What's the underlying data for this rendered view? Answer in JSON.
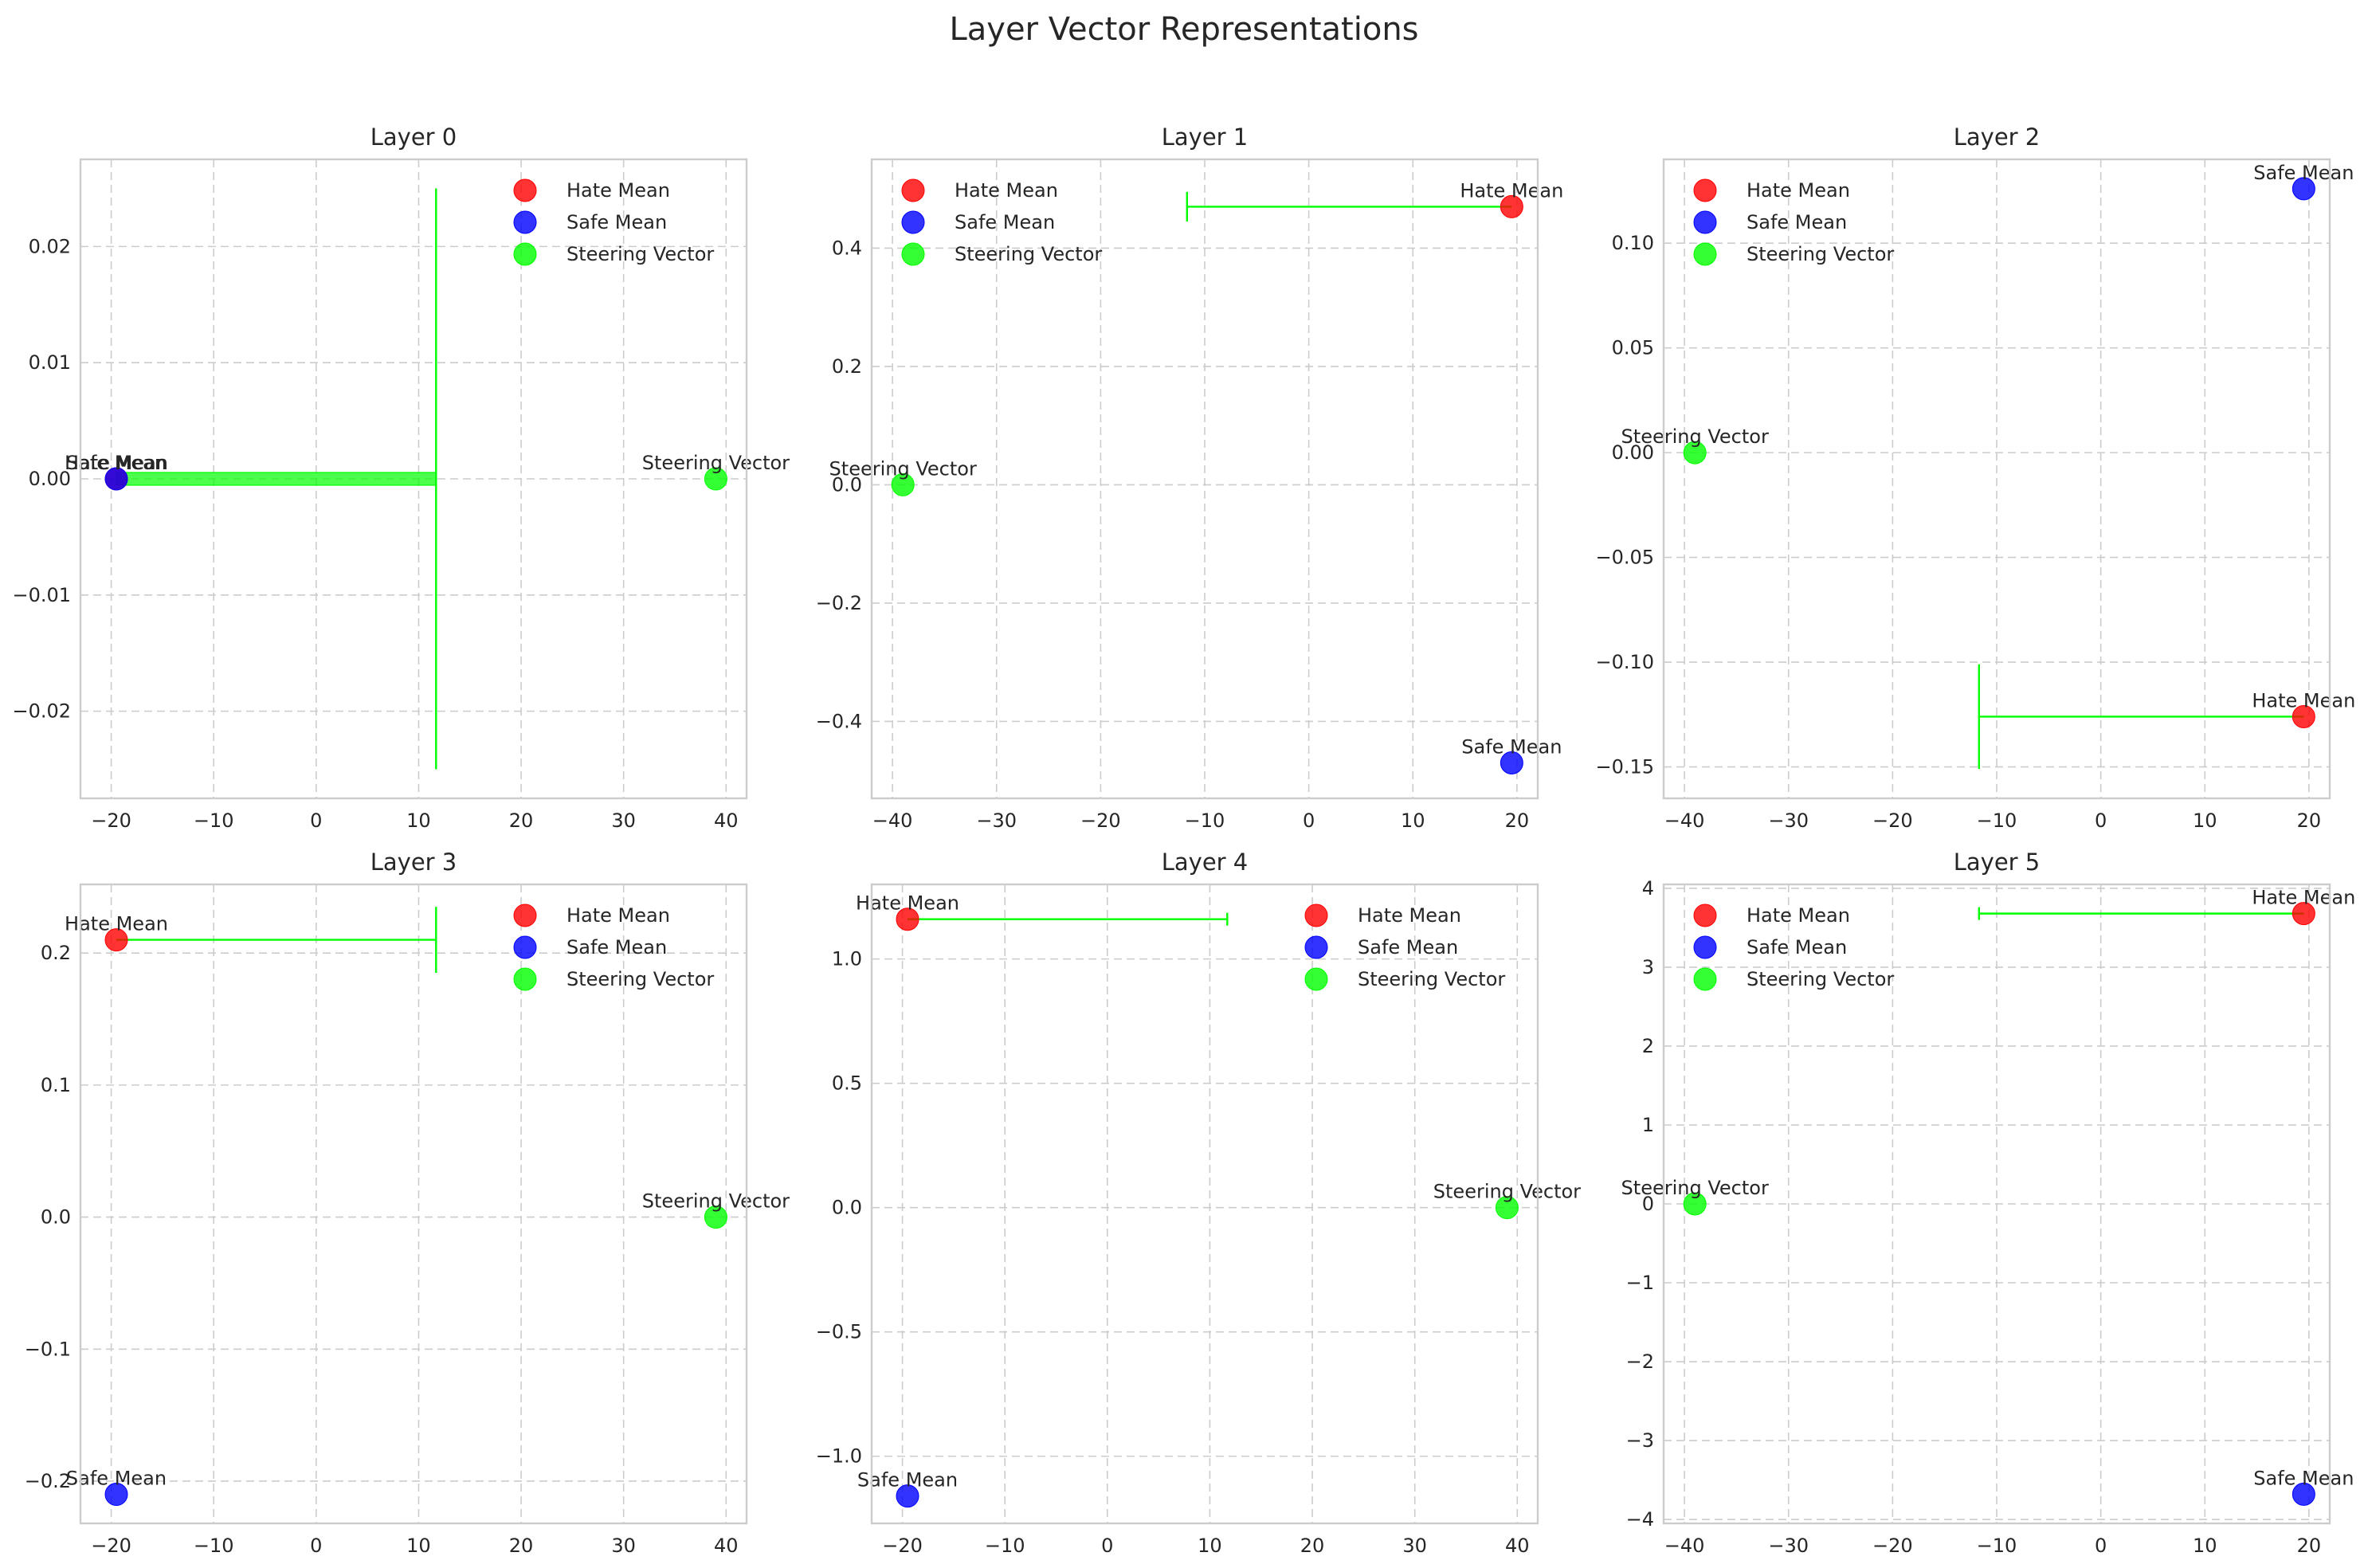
{
  "figure": {
    "title": "Layer Vector Representations"
  },
  "colors": {
    "hate": "#ff0000",
    "safe": "#0000ff",
    "steering": "#00ff00",
    "grid": "#cccccc",
    "spine": "#cccccc"
  },
  "legend_labels": [
    "Hate Mean",
    "Safe Mean",
    "Steering Vector"
  ],
  "chart_data": [
    {
      "type": "scatter",
      "title": "Layer 0",
      "legend": "top-right",
      "grid": true,
      "xlim": [
        -23,
        42
      ],
      "ylim": [
        -0.0275,
        0.0275
      ],
      "xticks": [
        -20,
        -10,
        0,
        10,
        20,
        30,
        40
      ],
      "xtick_labels": [
        "−20",
        "−10",
        "0",
        "10",
        "20",
        "30",
        "40"
      ],
      "yticks": [
        -0.02,
        -0.01,
        0.0,
        0.01,
        0.02
      ],
      "ytick_labels": [
        "−0.02",
        "−0.01",
        "0.00",
        "0.01",
        "0.02"
      ],
      "series": [
        {
          "name": "Hate Mean",
          "x": -19.5,
          "y": 0.0,
          "annotation": "Hate Mean"
        },
        {
          "name": "Safe Mean",
          "x": -19.5,
          "y": 0.0,
          "annotation": "Safe Mean"
        },
        {
          "name": "Steering Vector",
          "x": 39.0,
          "y": 0.0,
          "annotation": "Steering Vector"
        }
      ],
      "arrow": {
        "x": -19.5,
        "y": 0.0,
        "dx": 31.2,
        "dy": 0.0,
        "head_halfheight": 0.025,
        "thick": true
      }
    },
    {
      "type": "scatter",
      "title": "Layer 1",
      "legend": "top-left",
      "grid": true,
      "xlim": [
        -42,
        22
      ],
      "ylim": [
        -0.53,
        0.55
      ],
      "xticks": [
        -40,
        -30,
        -20,
        -10,
        0,
        10,
        20
      ],
      "xtick_labels": [
        "−40",
        "−30",
        "−20",
        "−10",
        "0",
        "10",
        "20"
      ],
      "yticks": [
        -0.4,
        -0.2,
        0.0,
        0.2,
        0.4
      ],
      "ytick_labels": [
        "−0.4",
        "−0.2",
        "0.0",
        "0.2",
        "0.4"
      ],
      "series": [
        {
          "name": "Hate Mean",
          "x": 19.5,
          "y": 0.47,
          "annotation": "Hate Mean"
        },
        {
          "name": "Safe Mean",
          "x": 19.5,
          "y": -0.47,
          "annotation": "Safe Mean"
        },
        {
          "name": "Steering Vector",
          "x": -39.0,
          "y": 0.0,
          "annotation": "Steering Vector"
        }
      ],
      "arrow": {
        "x": 19.5,
        "y": 0.47,
        "dx": -31.2,
        "dy": 0.0,
        "head_halfheight": 0.025,
        "thick": false
      }
    },
    {
      "type": "scatter",
      "title": "Layer 2",
      "legend": "top-left",
      "grid": true,
      "xlim": [
        -42,
        22
      ],
      "ylim": [
        -0.165,
        0.14
      ],
      "xticks": [
        -40,
        -30,
        -20,
        -10,
        0,
        10,
        20
      ],
      "xtick_labels": [
        "−40",
        "−30",
        "−20",
        "−10",
        "0",
        "10",
        "20"
      ],
      "yticks": [
        -0.15,
        -0.1,
        -0.05,
        0.0,
        0.05,
        0.1
      ],
      "ytick_labels": [
        "−0.15",
        "−0.10",
        "−0.05",
        "0.00",
        "0.05",
        "0.10"
      ],
      "series": [
        {
          "name": "Hate Mean",
          "x": 19.5,
          "y": -0.126,
          "annotation": "Hate Mean"
        },
        {
          "name": "Safe Mean",
          "x": 19.5,
          "y": 0.126,
          "annotation": "Safe Mean"
        },
        {
          "name": "Steering Vector",
          "x": -39.0,
          "y": 0.0,
          "annotation": "Steering Vector"
        }
      ],
      "arrow": {
        "x": 19.5,
        "y": -0.126,
        "dx": -31.2,
        "dy": 0.0,
        "head_halfheight": 0.025,
        "thick": false
      }
    },
    {
      "type": "scatter",
      "title": "Layer 3",
      "legend": "top-right",
      "grid": true,
      "xlim": [
        -23,
        42
      ],
      "ylim": [
        -0.232,
        0.252
      ],
      "xticks": [
        -20,
        -10,
        0,
        10,
        20,
        30,
        40
      ],
      "xtick_labels": [
        "−20",
        "−10",
        "0",
        "10",
        "20",
        "30",
        "40"
      ],
      "yticks": [
        -0.2,
        -0.1,
        0.0,
        0.1,
        0.2
      ],
      "ytick_labels": [
        "−0.2",
        "−0.1",
        "0.0",
        "0.1",
        "0.2"
      ],
      "series": [
        {
          "name": "Hate Mean",
          "x": -19.5,
          "y": 0.21,
          "annotation": "Hate Mean"
        },
        {
          "name": "Safe Mean",
          "x": -19.5,
          "y": -0.21,
          "annotation": "Safe Mean"
        },
        {
          "name": "Steering Vector",
          "x": 39.0,
          "y": 0.0,
          "annotation": "Steering Vector"
        }
      ],
      "arrow": {
        "x": -19.5,
        "y": 0.21,
        "dx": 31.2,
        "dy": 0.0,
        "head_halfheight": 0.025,
        "thick": false
      }
    },
    {
      "type": "scatter",
      "title": "Layer 4",
      "legend": "top-right",
      "grid": true,
      "xlim": [
        -23,
        42
      ],
      "ylim": [
        -1.27,
        1.3
      ],
      "xticks": [
        -20,
        -10,
        0,
        10,
        20,
        30,
        40
      ],
      "xtick_labels": [
        "−20",
        "−10",
        "0",
        "10",
        "20",
        "30",
        "40"
      ],
      "yticks": [
        -1.0,
        -0.5,
        0.0,
        0.5,
        1.0
      ],
      "ytick_labels": [
        "−1.0",
        "−0.5",
        "0.0",
        "0.5",
        "1.0"
      ],
      "series": [
        {
          "name": "Hate Mean",
          "x": -19.5,
          "y": 1.16,
          "annotation": "Hate Mean"
        },
        {
          "name": "Safe Mean",
          "x": -19.5,
          "y": -1.16,
          "annotation": "Safe Mean"
        },
        {
          "name": "Steering Vector",
          "x": 39.0,
          "y": 0.0,
          "annotation": "Steering Vector"
        }
      ],
      "arrow": {
        "x": -19.5,
        "y": 1.16,
        "dx": 31.2,
        "dy": 0.0,
        "head_halfheight": 0.025,
        "thick": false
      }
    },
    {
      "type": "scatter",
      "title": "Layer 5",
      "legend": "top-left",
      "grid": true,
      "xlim": [
        -42,
        22
      ],
      "ylim": [
        -4.05,
        4.05
      ],
      "xticks": [
        -40,
        -30,
        -20,
        -10,
        0,
        10,
        20
      ],
      "xtick_labels": [
        "−40",
        "−30",
        "−20",
        "−10",
        "0",
        "10",
        "20"
      ],
      "yticks": [
        -4,
        -3,
        -2,
        -1,
        0,
        1,
        2,
        3,
        4
      ],
      "ytick_labels": [
        "−4",
        "−3",
        "−2",
        "−1",
        "0",
        "1",
        "2",
        "3",
        "4"
      ],
      "series": [
        {
          "name": "Hate Mean",
          "x": 19.5,
          "y": 3.68,
          "annotation": "Hate Mean"
        },
        {
          "name": "Safe Mean",
          "x": 19.5,
          "y": -3.68,
          "annotation": "Safe Mean"
        },
        {
          "name": "Steering Vector",
          "x": -39.0,
          "y": 0.0,
          "annotation": "Steering Vector"
        }
      ],
      "arrow": {
        "x": 19.5,
        "y": 3.68,
        "dx": -31.2,
        "dy": 0.0,
        "head_halfheight": 0.025,
        "thick": false
      }
    }
  ]
}
